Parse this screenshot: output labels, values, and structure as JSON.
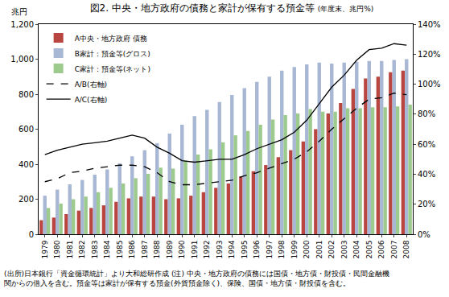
{
  "chart_data": {
    "type": "bar",
    "title": "図2. 中央・地方政府の債務と家計が保有する預金等",
    "subtitle": "(年度末、兆円%)",
    "y_label": "兆円",
    "notes": [
      "(出所)日本銀行「資金循環統計」より大和総研作成 (注) 中央・地方政府の債務には国債・地方債・財投債・民間金融機",
      "関からの借入を含む。預金等は家計が保有する預金(外貨預金除く)、保険、国債・地方債・財投債を含む。"
    ],
    "categories": [
      "1979",
      "1980",
      "1981",
      "1982",
      "1983",
      "1984",
      "1985",
      "1986",
      "1987",
      "1988",
      "1989",
      "1990",
      "1991",
      "1992",
      "1993",
      "1994",
      "1995",
      "1996",
      "1997",
      "1998",
      "1999",
      "2000",
      "2001",
      "2002",
      "2003",
      "2004",
      "2005",
      "2006",
      "2007",
      "2008"
    ],
    "series": [
      {
        "name": "A中央・地方政府 債務",
        "type": "bar",
        "color": "#b8453f",
        "values": [
          80,
          95,
          115,
          135,
          150,
          165,
          185,
          205,
          215,
          215,
          200,
          205,
          220,
          240,
          265,
          290,
          330,
          360,
          395,
          440,
          480,
          530,
          600,
          690,
          750,
          830,
          890,
          900,
          925,
          935
        ]
      },
      {
        "name": "B家計：預金等(グロス)",
        "type": "bar",
        "color": "#a7b7d4",
        "values": [
          220,
          255,
          285,
          310,
          340,
          370,
          405,
          445,
          480,
          520,
          575,
          625,
          675,
          710,
          755,
          795,
          835,
          870,
          900,
          935,
          955,
          970,
          980,
          975,
          980,
          985,
          990,
          990,
          995,
          1000
        ]
      },
      {
        "name": "C家計：預金等(ネット)",
        "type": "bar",
        "color": "#9dcb8d",
        "values": [
          150,
          175,
          200,
          215,
          240,
          265,
          290,
          320,
          345,
          380,
          375,
          420,
          455,
          485,
          525,
          565,
          590,
          625,
          655,
          680,
          690,
          715,
          700,
          700,
          720,
          720,
          725,
          725,
          730,
          740
        ]
      },
      {
        "name": "A/B(右軸)",
        "type": "line",
        "axis": "y2",
        "color": "#000000",
        "line_style": "dash",
        "values": [
          35,
          37,
          41,
          42,
          44,
          45,
          46,
          46,
          45,
          41,
          35,
          33,
          33,
          34,
          35,
          36,
          39,
          41,
          44,
          47,
          50,
          55,
          62,
          70,
          77,
          84,
          90,
          91,
          94,
          93
        ]
      },
      {
        "name": "A/C(右軸)",
        "type": "line",
        "axis": "y2",
        "color": "#000000",
        "line_style": "solid",
        "values": [
          53,
          56,
          58,
          60,
          61,
          62,
          64,
          66,
          64,
          58,
          54,
          49,
          48,
          49,
          50,
          50,
          53,
          57,
          60,
          63,
          68,
          76,
          87,
          98,
          106,
          116,
          123,
          124,
          127,
          126
        ]
      }
    ],
    "ylim": [
      0,
      1200
    ],
    "yticks": [
      0,
      200,
      400,
      600,
      800,
      {
        "value": 1000,
        "label": "1,000"
      },
      {
        "value": 1200,
        "label": "1,200"
      }
    ],
    "y2lim": [
      0,
      140
    ],
    "y2ticks": [
      {
        "value": 0,
        "label": "0%"
      },
      {
        "value": 20,
        "label": "20%"
      },
      {
        "value": 40,
        "label": "40%"
      },
      {
        "value": 60,
        "label": "60%"
      },
      {
        "value": 80,
        "label": "80%"
      },
      {
        "value": 100,
        "label": "100%"
      },
      {
        "value": 120,
        "label": "120%"
      },
      {
        "value": 140,
        "label": "140%"
      }
    ],
    "legend": "top-left",
    "grid": false
  }
}
